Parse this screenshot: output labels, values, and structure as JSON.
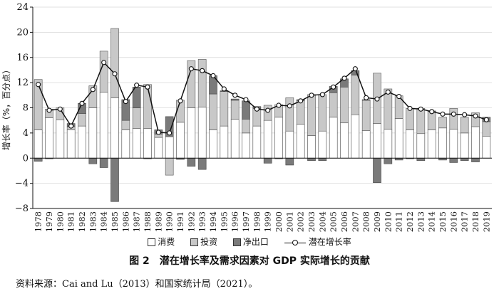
{
  "chart_data": {
    "type": "bar",
    "stacked": true,
    "ylabel": "增长率（%，百分点）",
    "ylim": [
      -8,
      24
    ],
    "yticks": [
      -8,
      -4,
      0,
      4,
      8,
      12,
      16,
      20,
      24
    ],
    "categories": [
      "1978",
      "1979",
      "1980",
      "1981",
      "1982",
      "1983",
      "1984",
      "1985",
      "1986",
      "1987",
      "1988",
      "1989",
      "1990",
      "1991",
      "1992",
      "1993",
      "1994",
      "1995",
      "1996",
      "1997",
      "1998",
      "1999",
      "2000",
      "2001",
      "2002",
      "2003",
      "2004",
      "2005",
      "2006",
      "2007",
      "2008",
      "2009",
      "2010",
      "2011",
      "2012",
      "2013",
      "2014",
      "2015",
      "2016",
      "2017",
      "2018",
      "2019"
    ],
    "series": [
      {
        "name": "消费",
        "color": "#ffffff",
        "stroke": "#444444",
        "values": [
          4.5,
          6.4,
          6.1,
          4.5,
          5.1,
          8.0,
          10.5,
          9.6,
          4.5,
          4.7,
          4.7,
          3.3,
          3.4,
          5.7,
          8.0,
          8.1,
          4.5,
          5.1,
          6.2,
          4.0,
          5.1,
          6.0,
          6.5,
          4.3,
          5.4,
          3.6,
          4.3,
          6.5,
          5.6,
          6.9,
          4.4,
          5.5,
          4.6,
          6.3,
          4.5,
          3.9,
          4.5,
          4.8,
          4.6,
          4.0,
          5.0,
          3.5
        ]
      },
      {
        "name": "投资",
        "color": "#c8c8c8",
        "stroke": "#555555",
        "values": [
          8.0,
          1.4,
          1.9,
          0.5,
          2.0,
          3.5,
          6.5,
          11.0,
          1.5,
          3.3,
          7.0,
          0.5,
          -2.7,
          3.5,
          7.5,
          7.6,
          5.7,
          5.5,
          3.0,
          2.2,
          2.8,
          2.4,
          2.0,
          5.3,
          3.7,
          6.5,
          5.8,
          3.9,
          5.7,
          6.3,
          4.8,
          8.0,
          6.4,
          3.6,
          3.4,
          4.0,
          2.9,
          1.7,
          3.3,
          2.5,
          2.2,
          2.3
        ]
      },
      {
        "name": "净出口",
        "color": "#7a7a7a",
        "stroke": "#444444",
        "values": [
          -0.5,
          -0.1,
          0,
          0.5,
          1.6,
          -0.9,
          -1.5,
          -6.9,
          3.3,
          3.3,
          -0.1,
          0.7,
          3.2,
          -0.2,
          -1.3,
          -1.8,
          2.9,
          0.1,
          0.2,
          2.9,
          0.3,
          -0.8,
          -0.1,
          -1.1,
          0.2,
          -0.4,
          -0.4,
          1.0,
          1.3,
          0.7,
          0.1,
          -3.9,
          -0.9,
          -0.3,
          -0.1,
          -0.4,
          0.1,
          -0.3,
          -0.7,
          -0.4,
          -0.6,
          0.7
        ]
      },
      {
        "name": "潜在增长率",
        "type": "line",
        "values": [
          11.7,
          7.6,
          7.8,
          5.1,
          8.7,
          10.9,
          15.2,
          13.4,
          9.0,
          11.6,
          11.3,
          4.1,
          4.0,
          9.1,
          14.2,
          13.9,
          13.1,
          11.0,
          10.0,
          9.3,
          7.8,
          7.6,
          8.4,
          8.3,
          9.1,
          10.0,
          10.1,
          11.3,
          12.7,
          14.2,
          9.6,
          9.4,
          10.5,
          9.8,
          7.9,
          7.8,
          7.4,
          7.0,
          7.0,
          6.9,
          6.7,
          6.1
        ]
      }
    ]
  },
  "legend": {
    "consumption": "消费",
    "investment": "投资",
    "net_exports": "净出口",
    "potential": "潜在增长率"
  },
  "caption": {
    "figure_no": "图 2",
    "title": "潜在增长率及需求因素对 GDP 实际增长的贡献"
  },
  "source": "资料来源：Cai and Lu（2013）和国家统计局（2021）。"
}
